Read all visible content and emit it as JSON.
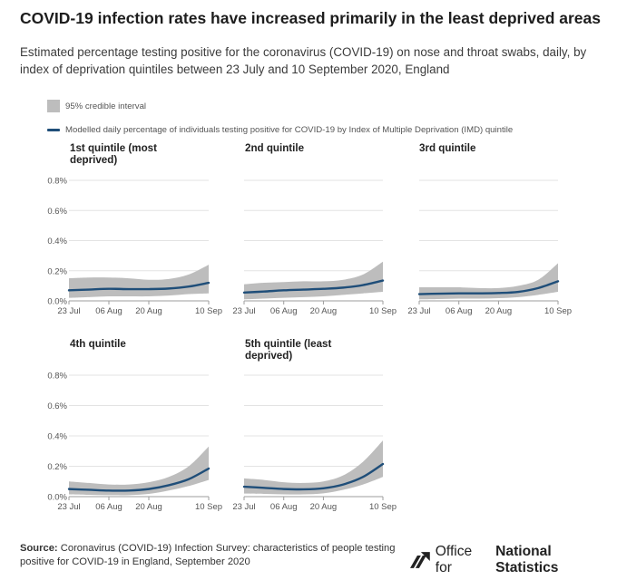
{
  "title": "COVID-19 infection rates have increased primarily in the least deprived areas",
  "subtitle": "Estimated percentage testing positive for the coronavirus (COVID-19) on nose and throat swabs, daily, by index of deprivation quintiles between 23 July and 10 September 2020, England",
  "legend": {
    "ci_label": "95% credible interval",
    "line_label": "Modelled daily percentage of individuals testing positive for COVID-19 by Index of Multiple Deprivation (IMD) quintile"
  },
  "colors": {
    "line": "#1f4e79",
    "band": "#bdbdbd",
    "grid": "#e3e3e3",
    "axis": "#9e9e9e"
  },
  "chart_data": [
    {
      "type": "area",
      "title": "1st quintile (most deprived)",
      "title_lines": [
        "1st quintile (most",
        "deprived)"
      ],
      "x": [
        "23 Jul",
        "30 Jul",
        "06 Aug",
        "13 Aug",
        "20 Aug",
        "27 Aug",
        "03 Sep",
        "10 Sep"
      ],
      "x_tick_labels": [
        "23 Jul",
        "06 Aug",
        "20 Aug",
        "10 Sep"
      ],
      "y_tick_labels": [
        "0.0%",
        "0.2%",
        "0.4%",
        "0.6%",
        "0.8%"
      ],
      "ylim": [
        0,
        0.8
      ],
      "series": [
        {
          "values": [
            0.07,
            0.075,
            0.08,
            0.078,
            0.078,
            0.082,
            0.095,
            0.12
          ]
        }
      ],
      "ci_lower": [
        0.02,
        0.025,
        0.03,
        0.03,
        0.03,
        0.035,
        0.045,
        0.05
      ],
      "ci_upper": [
        0.15,
        0.155,
        0.155,
        0.15,
        0.14,
        0.145,
        0.175,
        0.24
      ]
    },
    {
      "type": "area",
      "title": "2nd quintile",
      "title_lines": [
        "2nd quintile"
      ],
      "x": [
        "23 Jul",
        "30 Jul",
        "06 Aug",
        "13 Aug",
        "20 Aug",
        "27 Aug",
        "03 Sep",
        "10 Sep"
      ],
      "x_tick_labels": [
        "23 Jul",
        "06 Aug",
        "20 Aug",
        "10 Sep"
      ],
      "y_tick_labels": [
        "0.0%",
        "0.2%",
        "0.4%",
        "0.6%",
        "0.8%"
      ],
      "ylim": [
        0,
        0.8
      ],
      "series": [
        {
          "values": [
            0.055,
            0.062,
            0.07,
            0.075,
            0.08,
            0.088,
            0.105,
            0.135
          ]
        }
      ],
      "ci_lower": [
        0.01,
        0.015,
        0.02,
        0.025,
        0.03,
        0.04,
        0.05,
        0.06
      ],
      "ci_upper": [
        0.11,
        0.12,
        0.125,
        0.13,
        0.13,
        0.14,
        0.175,
        0.26
      ]
    },
    {
      "type": "area",
      "title": "3rd quintile",
      "title_lines": [
        "3rd quintile"
      ],
      "x": [
        "23 Jul",
        "30 Jul",
        "06 Aug",
        "13 Aug",
        "20 Aug",
        "27 Aug",
        "03 Sep",
        "10 Sep"
      ],
      "x_tick_labels": [
        "23 Jul",
        "06 Aug",
        "20 Aug",
        "10 Sep"
      ],
      "y_tick_labels": [
        "0.0%",
        "0.2%",
        "0.4%",
        "0.6%",
        "0.8%"
      ],
      "ylim": [
        0,
        0.8
      ],
      "series": [
        {
          "values": [
            0.045,
            0.048,
            0.05,
            0.05,
            0.052,
            0.06,
            0.085,
            0.13
          ]
        }
      ],
      "ci_lower": [
        0.01,
        0.012,
        0.015,
        0.015,
        0.018,
        0.025,
        0.04,
        0.06
      ],
      "ci_upper": [
        0.09,
        0.09,
        0.09,
        0.085,
        0.085,
        0.1,
        0.14,
        0.25
      ]
    },
    {
      "type": "area",
      "title": "4th quintile",
      "title_lines": [
        "4th quintile"
      ],
      "x": [
        "23 Jul",
        "30 Jul",
        "06 Aug",
        "13 Aug",
        "20 Aug",
        "27 Aug",
        "03 Sep",
        "10 Sep"
      ],
      "x_tick_labels": [
        "23 Jul",
        "06 Aug",
        "20 Aug",
        "10 Sep"
      ],
      "y_tick_labels": [
        "0.0%",
        "0.2%",
        "0.4%",
        "0.6%",
        "0.8%"
      ],
      "ylim": [
        0,
        0.8
      ],
      "series": [
        {
          "values": [
            0.05,
            0.045,
            0.04,
            0.04,
            0.05,
            0.075,
            0.115,
            0.185
          ]
        }
      ],
      "ci_lower": [
        0.015,
        0.012,
        0.01,
        0.01,
        0.018,
        0.04,
        0.07,
        0.11
      ],
      "ci_upper": [
        0.1,
        0.09,
        0.08,
        0.08,
        0.095,
        0.13,
        0.2,
        0.33
      ]
    },
    {
      "type": "area",
      "title": "5th quintile (least deprived)",
      "title_lines": [
        "5th quintile (least",
        "deprived)"
      ],
      "x": [
        "23 Jul",
        "30 Jul",
        "06 Aug",
        "13 Aug",
        "20 Aug",
        "27 Aug",
        "03 Sep",
        "10 Sep"
      ],
      "x_tick_labels": [
        "23 Jul",
        "06 Aug",
        "20 Aug",
        "10 Sep"
      ],
      "y_tick_labels": [
        "0.0%",
        "0.2%",
        "0.4%",
        "0.6%",
        "0.8%"
      ],
      "ylim": [
        0,
        0.8
      ],
      "series": [
        {
          "values": [
            0.065,
            0.058,
            0.05,
            0.048,
            0.055,
            0.08,
            0.13,
            0.215
          ]
        }
      ],
      "ci_lower": [
        0.02,
        0.018,
        0.015,
        0.015,
        0.022,
        0.045,
        0.08,
        0.13
      ],
      "ci_upper": [
        0.12,
        0.11,
        0.095,
        0.09,
        0.1,
        0.14,
        0.23,
        0.37
      ]
    }
  ],
  "source": {
    "label": "Source:",
    "text": "Coronavirus (COVID-19) Infection Survey: characteristics of people testing positive for COVID-19 in England, September 2020"
  },
  "brand": {
    "prefix": "Office for",
    "strong": "National Statistics",
    "icon": "ons-logo-icon"
  }
}
